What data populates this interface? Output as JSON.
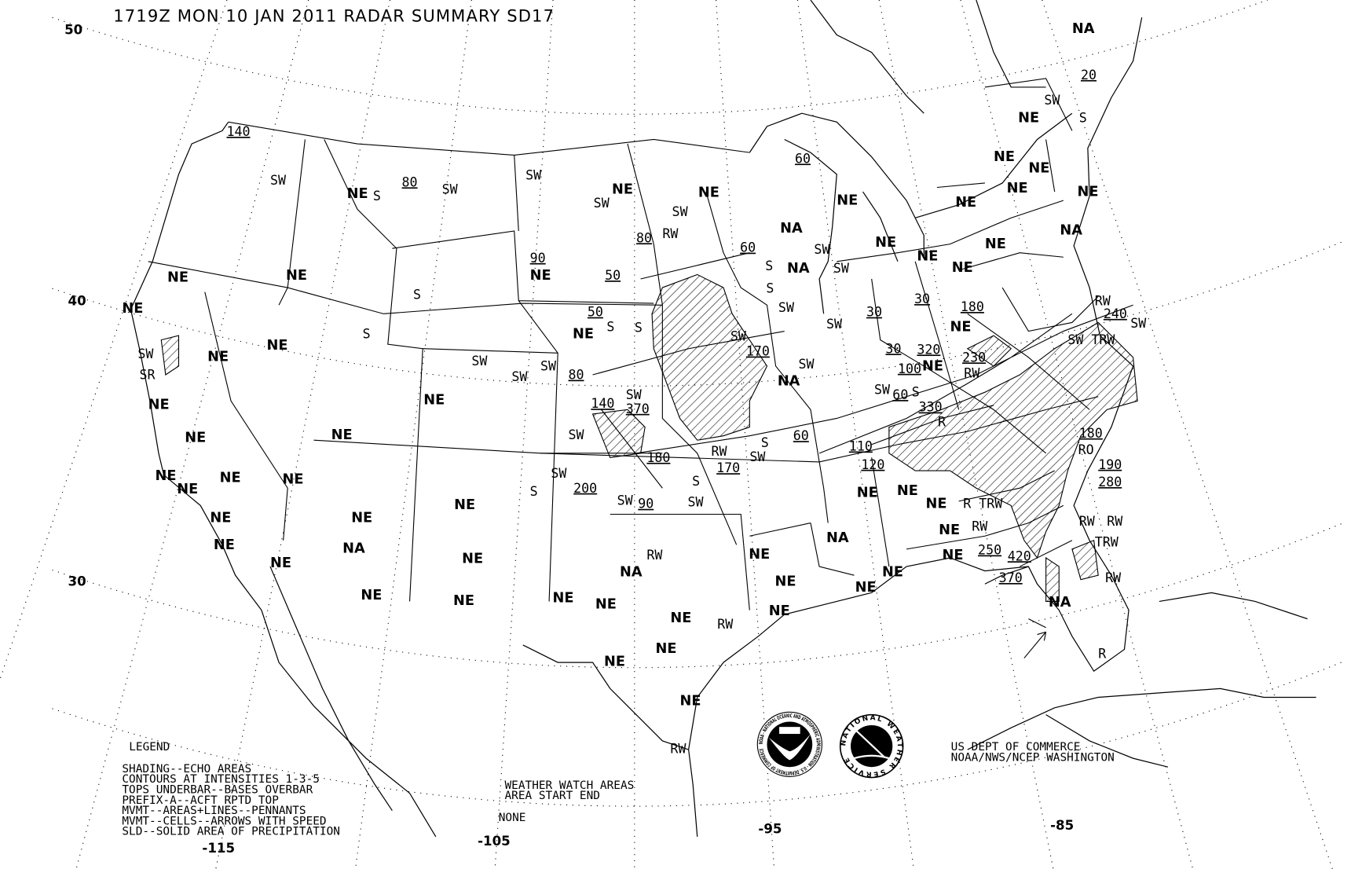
{
  "title": "1719Z MON 10 JAN 2011 RADAR SUMMARY SD17",
  "lat_labels": [
    "50",
    "40",
    "30"
  ],
  "lon_labels": [
    "-115",
    "-105",
    "-95",
    "-85"
  ],
  "legend": {
    "heading": "LEGEND",
    "lines": [
      "SHADING--ECHO AREAS",
      "CONTOURS AT INTENSITIES 1-3-5",
      "TOPS UNDERBAR--BASES OVERBAR",
      "PREFIX-A--ACFT RPTD TOP",
      "MVMT--AREAS+LINES--PENNANTS",
      "MVMT--CELLS--ARROWS WITH SPEED",
      "SLD--SOLID AREA OF PRECIPITATION"
    ]
  },
  "watch": {
    "heading": "WEATHER WATCH AREAS",
    "columns": "AREA   START  END",
    "value": "NONE"
  },
  "credit": {
    "line1": "US DEPT OF COMMERCE",
    "line2": "NOAA/NWS/NCEP WASHINGTON"
  },
  "logos": {
    "noaa": "NOAA - NATIONAL OCEANIC AND ATMOSPHERIC ADMINISTRATION - U.S. DEPARTMENT OF COMMERCE",
    "nws": "NATIONAL WEATHER SERVICE"
  },
  "map_labels": [
    "NA",
    "20",
    "SW",
    "S",
    "NE",
    "NE",
    "NE",
    "NE",
    "NE",
    "NE",
    "NA",
    "NE",
    "60",
    "NE",
    "NA",
    "NE",
    "NE",
    "NE",
    "SW",
    "SW",
    "S",
    "NA",
    "NE",
    "SW",
    "RW",
    "80",
    "60",
    "NE",
    "SW",
    "SW",
    "80",
    "SW",
    "NE",
    "S",
    "SW",
    "140",
    "NE",
    "NE",
    "90",
    "NE",
    "50",
    "S",
    "NE",
    "50",
    "NE",
    "S",
    "S",
    "S",
    "SW",
    "SW",
    "30",
    "30",
    "180",
    "NE",
    "240",
    "SW",
    "RW",
    "SW TRW",
    "NE",
    "S",
    "NE",
    "SW",
    "SR",
    "NE",
    "SW",
    "SW",
    "SW",
    "80",
    "SW",
    "170",
    "SW",
    "NA",
    "30",
    "320",
    "NE",
    "230",
    "RW",
    "100",
    "60",
    "SW",
    "S",
    "330",
    "R",
    "NE",
    "140",
    "370",
    "SW",
    "NE",
    "NE",
    "SW",
    "180",
    "60",
    "110",
    "S",
    "SW",
    "RW",
    "170",
    "120",
    "180",
    "RO",
    "190",
    "280",
    "NE",
    "NE",
    "NE",
    "NE",
    "SW",
    "200",
    "S",
    "S",
    "SW",
    "90",
    "SW",
    "NE",
    "NE",
    "NE",
    "R TRW",
    "RW",
    "NE",
    "RW",
    "RW",
    "TRW",
    "NE",
    "NE",
    "NE",
    "NE",
    "NA",
    "NA",
    "250",
    "420",
    "NE",
    "NE",
    "NE",
    "NE",
    "RW",
    "NA",
    "NE",
    "370",
    "NE",
    "NE",
    "RW",
    "NA",
    "NE",
    "NE",
    "NE",
    "NE",
    "NE",
    "NE",
    "RW",
    "NE",
    "NE",
    "R",
    "NE",
    "RW"
  ]
}
